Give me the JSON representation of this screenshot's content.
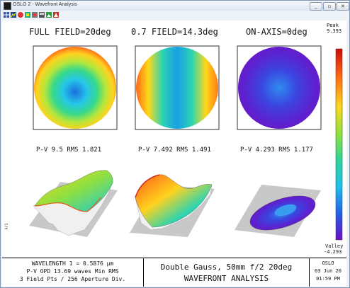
{
  "window": {
    "title": "OSLO 2 - Wavefront Analysis",
    "controls": [
      "_",
      "▫",
      "✕"
    ]
  },
  "toolbar": {
    "icons": [
      "grid-icon",
      "graph-icon",
      "color-icon",
      "palette-icon",
      "record-icon",
      "layers-icon",
      "image-icon",
      "shape-icon"
    ]
  },
  "plots": [
    {
      "title": "FULL FIELD=20deg",
      "stat": "P-V 9.5 RMS 1.821"
    },
    {
      "title": "0.7 FIELD=14.3deg",
      "stat": "P-V 7.492 RMS 1.491"
    },
    {
      "title": "ON-AXIS=0deg",
      "stat": "P-V 4.293 RMS 1.177"
    }
  ],
  "colorbar": {
    "peak_label": "Peak",
    "peak_value": "9.393",
    "valley_label": "Valley",
    "valley_value": "-4.293"
  },
  "axis_marker": "λ/1",
  "footer": {
    "wavelength": "WAVELENGTH 1 = 0.5876 µm",
    "opd": "P-V OPD 13.69 waves Min RMS",
    "fields": "3 Field Pts / 256 Aperture Div.",
    "lens": "Double Gauss, 50mm f/2 20deg",
    "analysis": "WAVEFRONT ANALYSIS",
    "app": "OSLO",
    "date": "03 Jun 20",
    "time": "01:59 PM"
  }
}
